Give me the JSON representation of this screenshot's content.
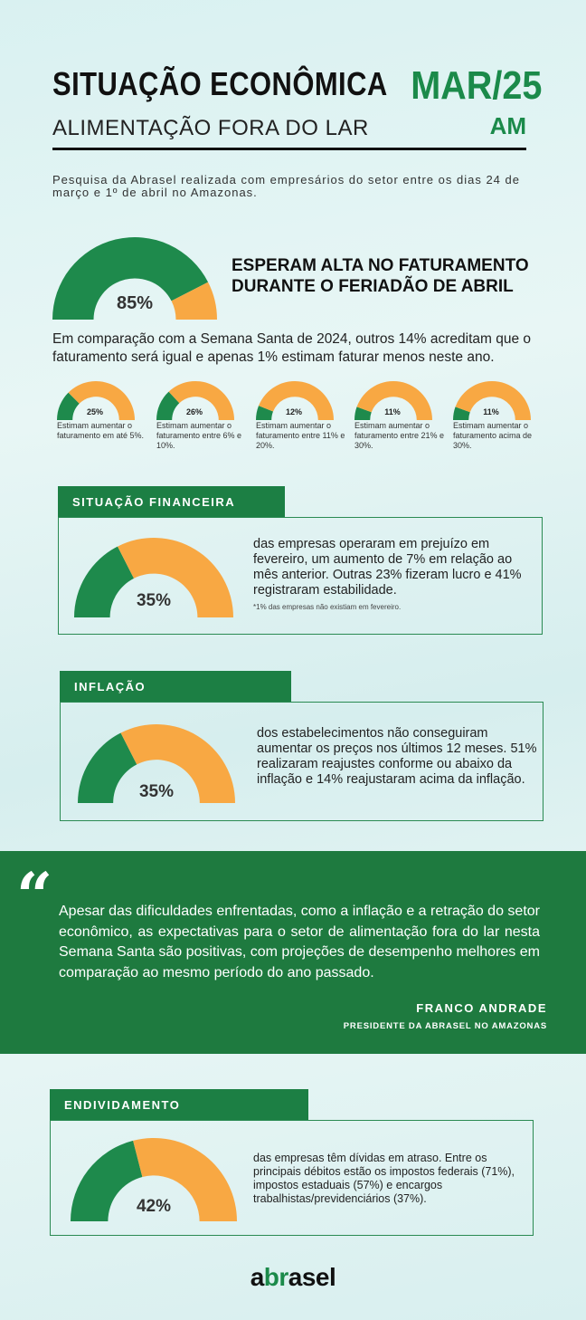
{
  "header": {
    "title": "SITUAÇÃO ECONÔMICA",
    "subtitle": "ALIMENTAÇÃO FORA DO LAR",
    "date": "MAR/25",
    "state": "AM",
    "intro": "Pesquisa da Abrasel realizada com empresários do setor entre os dias 24 de março e 1º de abril no Amazonas."
  },
  "main": {
    "percent": "85%",
    "percent_value": 85,
    "heading": "ESPERAM ALTA NO FATURAMENTO DURANTE O FERIADÃO DE ABRIL",
    "text": "Em comparação com a Semana Santa de 2024, outros 14% acreditam que o faturamento será igual e apenas 1% estimam faturar menos neste ano."
  },
  "small_gauges": [
    {
      "value": "25%",
      "num": 25,
      "text": "Estimam aumentar o faturamento em até 5%."
    },
    {
      "value": "26%",
      "num": 26,
      "text": "Estimam aumentar o faturamento entre 6% e 10%."
    },
    {
      "value": "12%",
      "num": 12,
      "text": "Estimam aumentar o faturamento entre 11% e 20%."
    },
    {
      "value": "11%",
      "num": 11,
      "text": "Estimam aumentar o faturamento entre 21% e 30%."
    },
    {
      "value": "11%",
      "num": 11,
      "text": "Estimam aumentar o faturamento acima de 30%."
    }
  ],
  "financeira": {
    "label": "SITUAÇÃO FINANCEIRA",
    "percent": "35%",
    "percent_value": 35,
    "text": "das empresas operaram em prejuízo em fevereiro, um aumento de 7% em relação ao mês anterior. Outras 23% fizeram lucro e 41% registraram estabilidade.",
    "footnote": "*1% das empresas não existiam em fevereiro."
  },
  "inflacao": {
    "label": "INFLAÇÃO",
    "percent": "35%",
    "percent_value": 35,
    "text": "dos estabelecimentos não conseguiram aumentar os preços nos últimos 12 meses. 51% realizaram reajustes conforme ou abaixo da inflação e 14% reajustaram acima da inflação."
  },
  "quote": {
    "mark": "“",
    "text": "Apesar das dificuldades enfrentadas, como a inflação e a retração do setor econômico, as expectativas para o setor de alimentação fora do lar nesta Semana Santa são positivas, com projeções de desempenho melhores em comparação ao mesmo período do ano passado.",
    "name": "FRANCO ANDRADE",
    "role": "PRESIDENTE DA ABRASEL NO AMAZONAS"
  },
  "endividamento": {
    "label": "ENDIVIDAMENTO",
    "percent": "42%",
    "percent_value": 42,
    "text": "das empresas têm dívidas em atraso. Entre os principais débitos estão os impostos federais (71%), impostos estaduais (57%) e encargos trabalhistas/previdenciários (37%)."
  },
  "logo": {
    "a": "a",
    "br": "br",
    "rest": "asel"
  },
  "colors": {
    "green": "#1e8a4c",
    "orange": "#f8a843",
    "dark_green_band": "#1e7a3f"
  }
}
